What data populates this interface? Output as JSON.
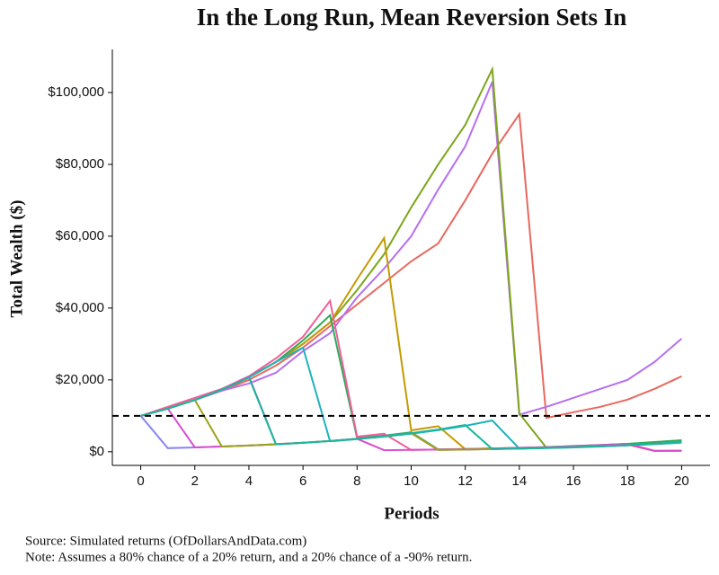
{
  "chart_data": {
    "type": "line",
    "title": "In the Long Run, Mean Reversion Sets In",
    "x_label": "Periods",
    "y_label": "Total Wealth ($)",
    "source": "Source:  Simulated returns (OfDollarsAndData.com)",
    "note": "Note:  Assumes a 80% chance of a 20% return, and a 20% chance of a -90% return.",
    "x": [
      0,
      1,
      2,
      3,
      4,
      5,
      6,
      7,
      8,
      9,
      10,
      11,
      12,
      13,
      14,
      15,
      16,
      17,
      18,
      19,
      20
    ],
    "xlim": [
      -1.05,
      21.05
    ],
    "xticks": [
      0,
      2,
      4,
      6,
      8,
      10,
      12,
      14,
      16,
      18,
      20
    ],
    "ylim": [
      -3800,
      112000
    ],
    "yticks": [
      {
        "value": 0,
        "label": "$0"
      },
      {
        "value": 20000,
        "label": "$20,000"
      },
      {
        "value": 40000,
        "label": "$40,000"
      },
      {
        "value": 60000,
        "label": "$60,000"
      },
      {
        "value": 80000,
        "label": "$80,000"
      },
      {
        "value": 100000,
        "label": "$100,000"
      }
    ],
    "reference_line": 10000,
    "series": [
      {
        "color": "#e8685f",
        "values": [
          10000,
          12000,
          14400,
          17000,
          20000,
          24000,
          29000,
          35000,
          41000,
          47000,
          53000,
          58000,
          70000,
          83000,
          94000,
          9400,
          11000,
          12500,
          14500,
          17500,
          21000
        ]
      },
      {
        "color": "#b66ff0",
        "values": [
          10000,
          12000,
          14400,
          17000,
          19000,
          22000,
          28000,
          33000,
          43000,
          51000,
          60000,
          73000,
          85000,
          103000,
          10300,
          12500,
          15000,
          17500,
          20000,
          25000,
          31500
        ]
      },
      {
        "color": "#7ca61a",
        "values": [
          10000,
          12000,
          14400,
          17300,
          20700,
          25000,
          30000,
          36000,
          45000,
          55000,
          68000,
          80000,
          91000,
          106500,
          10650,
          1100,
          1300,
          1500,
          1800,
          2200,
          2600
        ]
      },
      {
        "color": "#c49a00",
        "values": [
          10000,
          12000,
          14400,
          17300,
          20700,
          25000,
          30000,
          36000,
          48000,
          59500,
          5950,
          7100,
          710,
          850,
          1000,
          1200,
          1400,
          1700,
          2000,
          200,
          240
        ]
      },
      {
        "color": "#2eaa5a",
        "values": [
          10000,
          12000,
          14400,
          17300,
          20700,
          25000,
          31000,
          38000,
          3800,
          4500,
          5400,
          650,
          780,
          930,
          1100,
          1300,
          1600,
          1900,
          2200,
          2700,
          3200
        ]
      },
      {
        "color": "#ef5f9a",
        "values": [
          10000,
          12500,
          15000,
          17500,
          21000,
          26000,
          32000,
          42000,
          4200,
          5000,
          500,
          600,
          720,
          860,
          1000,
          1200,
          1400,
          1700,
          2000,
          240,
          290
        ]
      },
      {
        "color": "#1fb3bd",
        "values": [
          10000,
          12000,
          14400,
          17300,
          20700,
          25000,
          29000,
          2900,
          3500,
          4200,
          5000,
          6000,
          7200,
          8700,
          870,
          1000,
          1200,
          1450,
          1750,
          2100,
          2500
        ]
      },
      {
        "color": "#e052c8",
        "values": [
          10000,
          12000,
          14400,
          17300,
          21000,
          2100,
          2500,
          3000,
          3600,
          4300,
          5200,
          520,
          620,
          750,
          900,
          1080,
          1300,
          1550,
          1850,
          2200,
          2700
        ]
      },
      {
        "color": "#8a86f0",
        "values": [
          10000,
          1000,
          1200,
          1440,
          1730,
          2070,
          2500,
          3000,
          3600,
          4300,
          5200,
          520,
          620,
          750,
          900,
          1080,
          1300,
          1550,
          1870,
          2240,
          2690
        ]
      },
      {
        "color": "#d84fd0",
        "values": [
          10000,
          12000,
          1200,
          1440,
          1730,
          2070,
          2500,
          3000,
          3600,
          430,
          520,
          620,
          740,
          890,
          1070,
          1280,
          1540,
          1850,
          2220,
          260,
          310
        ]
      },
      {
        "color": "#9aa51a",
        "values": [
          10000,
          12000,
          14400,
          1440,
          1730,
          2070,
          2480,
          2980,
          3580,
          4300,
          5160,
          520,
          620,
          740,
          890,
          1070,
          1280,
          1540,
          1850,
          2220,
          2660
        ]
      },
      {
        "color": "#17b7a0",
        "values": [
          10000,
          12000,
          14400,
          17300,
          20700,
          2070,
          2480,
          2980,
          3580,
          4300,
          5160,
          6190,
          7430,
          740,
          890,
          1070,
          1280,
          1540,
          1850,
          2220,
          2660
        ]
      }
    ]
  }
}
